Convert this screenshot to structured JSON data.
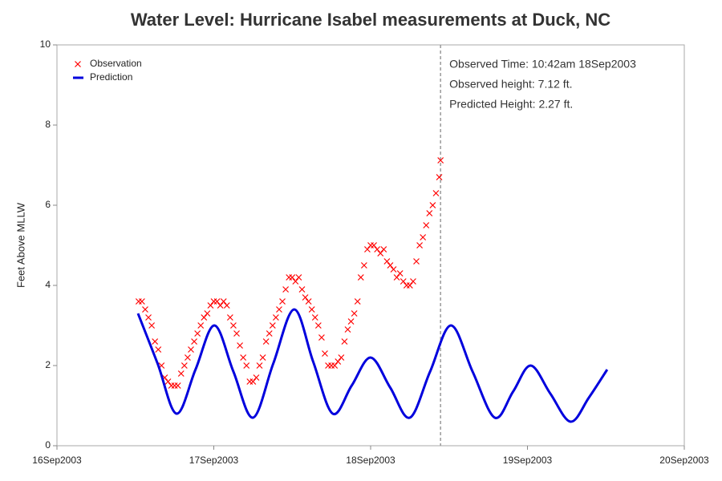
{
  "chart_data": {
    "type": "line",
    "title": "Water Level: Hurricane Isabel measurements at Duck, NC",
    "y_label": "Feet Above MLLW",
    "xlim": [
      0,
      96
    ],
    "xticks": [
      {
        "value": 0,
        "label": "16Sep2003"
      },
      {
        "value": 24,
        "label": "17Sep2003"
      },
      {
        "value": 48,
        "label": "18Sep2003"
      },
      {
        "value": 72,
        "label": "19Sep2003"
      },
      {
        "value": 96,
        "label": "20Sep2003"
      }
    ],
    "ylim": [
      0,
      10
    ],
    "yticks": [
      0,
      2,
      4,
      6,
      8,
      10
    ],
    "legend": "top-left",
    "cursor_x": 58.7,
    "annotations": [
      "Observed Time: 10:42am 18Sep2003",
      "Observed height:   7.12 ft.",
      "Predicted Height:  2.27 ft."
    ],
    "series": [
      {
        "name": "Observation",
        "style": "markers",
        "color": "#ff0000",
        "x": [
          12.5,
          13,
          13.5,
          14,
          14.5,
          15,
          15.5,
          16,
          16.5,
          17,
          17.5,
          18,
          18.5,
          19,
          19.5,
          20,
          20.5,
          21,
          21.5,
          22,
          22.5,
          23,
          23.5,
          24,
          24.5,
          25,
          25.5,
          26,
          26.5,
          27,
          27.5,
          28,
          28.5,
          29,
          29.5,
          30,
          30.5,
          31,
          31.5,
          32,
          32.5,
          33,
          33.5,
          34,
          34.5,
          35,
          35.5,
          36,
          36.5,
          37,
          37.5,
          38,
          38.5,
          39,
          39.5,
          40,
          40.5,
          41,
          41.5,
          42,
          42.5,
          43,
          43.5,
          44,
          44.5,
          45,
          45.5,
          46,
          46.5,
          47,
          47.5,
          48,
          48.5,
          49,
          49.5,
          50,
          50.5,
          51,
          51.5,
          52,
          52.5,
          53,
          53.5,
          54,
          54.5,
          55,
          55.5,
          56,
          56.5,
          57,
          57.5,
          58,
          58.5,
          58.7
        ],
        "values": [
          3.6,
          3.6,
          3.4,
          3.2,
          3.0,
          2.6,
          2.4,
          2.0,
          1.7,
          1.6,
          1.5,
          1.5,
          1.5,
          1.8,
          2.0,
          2.2,
          2.4,
          2.6,
          2.8,
          3.0,
          3.2,
          3.3,
          3.5,
          3.6,
          3.6,
          3.5,
          3.6,
          3.5,
          3.2,
          3.0,
          2.8,
          2.5,
          2.2,
          2.0,
          1.6,
          1.6,
          1.7,
          2.0,
          2.2,
          2.6,
          2.8,
          3.0,
          3.2,
          3.4,
          3.6,
          3.9,
          4.2,
          4.2,
          4.1,
          4.2,
          3.9,
          3.7,
          3.6,
          3.4,
          3.2,
          3.0,
          2.7,
          2.3,
          2.0,
          2.0,
          2.0,
          2.1,
          2.2,
          2.6,
          2.9,
          3.1,
          3.3,
          3.6,
          4.2,
          4.5,
          4.9,
          5.0,
          5.0,
          4.9,
          4.8,
          4.9,
          4.6,
          4.5,
          4.4,
          4.2,
          4.3,
          4.1,
          4.0,
          4.0,
          4.1,
          4.6,
          5.0,
          5.2,
          5.5,
          5.8,
          6.0,
          6.3,
          6.7,
          7.12
        ]
      },
      {
        "name": "Prediction",
        "style": "line",
        "color": "#0000dd",
        "x": [
          12.4,
          15.4,
          18.3,
          21.2,
          24.1,
          27.0,
          30.0,
          33.1,
          36.3,
          39.2,
          42.2,
          45.1,
          48.0,
          51.0,
          54.0,
          57.1,
          60.3,
          63.6,
          67.0,
          69.8,
          72.5,
          75.5,
          78.6,
          81.4,
          84.2
        ],
        "values": [
          3.3,
          2.05,
          0.8,
          1.9,
          3.0,
          1.85,
          0.7,
          2.05,
          3.4,
          2.1,
          0.8,
          1.5,
          2.2,
          1.45,
          0.7,
          1.85,
          3.0,
          1.85,
          0.7,
          1.35,
          2.0,
          1.3,
          0.6,
          1.2,
          1.9
        ]
      }
    ]
  }
}
